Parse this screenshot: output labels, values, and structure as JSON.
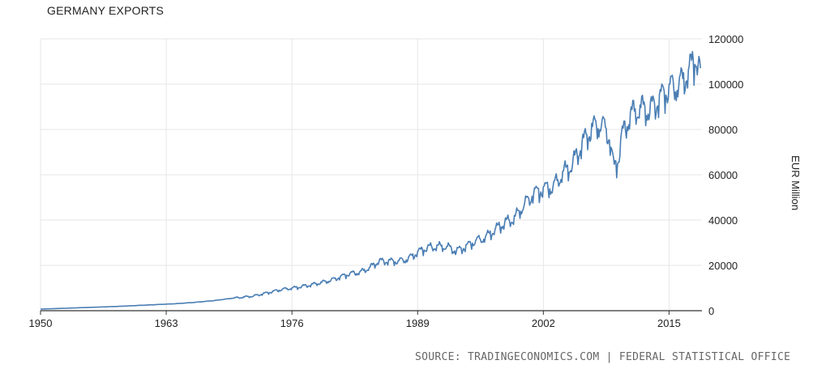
{
  "title": "GERMANY EXPORTS",
  "source": "SOURCE: TRADINGECONOMICS.COM | FEDERAL STATISTICAL OFFICE",
  "colors": {
    "line": "#4a7eb4",
    "grid": "#e6e6e6",
    "axis": "#333333",
    "text": "#222222"
  },
  "chart_data": {
    "type": "line",
    "title": "GERMANY EXPORTS",
    "ylabel": "EUR Million",
    "xlabel": "",
    "xlim": [
      1950,
      2018.4
    ],
    "ylim": [
      0,
      120000
    ],
    "x_ticks": [
      1950,
      1963,
      1976,
      1989,
      2002,
      2015
    ],
    "y_ticks": [
      0,
      20000,
      40000,
      60000,
      80000,
      100000,
      120000
    ],
    "y_axis_position": "right",
    "grid": true,
    "legend": "none",
    "series": [
      {
        "points": [
          [
            1950,
            700
          ],
          [
            1952,
            1000
          ],
          [
            1954,
            1300
          ],
          [
            1956,
            1600
          ],
          [
            1958,
            1900
          ],
          [
            1960,
            2300
          ],
          [
            1962,
            2700
          ],
          [
            1964,
            3100
          ],
          [
            1966,
            3700
          ],
          [
            1968,
            4500
          ],
          [
            1970,
            5600
          ],
          [
            1972,
            6500
          ],
          [
            1974,
            8500
          ],
          [
            1975,
            9500
          ],
          [
            1976,
            10000
          ],
          [
            1978,
            11500
          ],
          [
            1980,
            13500
          ],
          [
            1981,
            15000
          ],
          [
            1982,
            16500
          ],
          [
            1983,
            17000
          ],
          [
            1984,
            19000
          ],
          [
            1985,
            22000
          ],
          [
            1986,
            22000
          ],
          [
            1987,
            22000
          ],
          [
            1988,
            23000
          ],
          [
            1989,
            26000
          ],
          [
            1990,
            28000
          ],
          [
            1991,
            28500
          ],
          [
            1992,
            28500
          ],
          [
            1993,
            26500
          ],
          [
            1994,
            28500
          ],
          [
            1995,
            31000
          ],
          [
            1996,
            32500
          ],
          [
            1997,
            36000
          ],
          [
            1998,
            39000
          ],
          [
            1999,
            41000
          ],
          [
            2000,
            47000
          ],
          [
            2001,
            52000
          ],
          [
            2002,
            54000
          ],
          [
            2003,
            55000
          ],
          [
            2004,
            61000
          ],
          [
            2005,
            65000
          ],
          [
            2006,
            74000
          ],
          [
            2007,
            81000
          ],
          [
            2008,
            83000
          ],
          [
            2008.8,
            78000
          ],
          [
            2009.3,
            63000
          ],
          [
            2009.8,
            68000
          ],
          [
            2010,
            76000
          ],
          [
            2011,
            87000
          ],
          [
            2012,
            90000
          ],
          [
            2013,
            89000
          ],
          [
            2014,
            94000
          ],
          [
            2015,
            99000
          ],
          [
            2016,
            100000
          ],
          [
            2017,
            106000
          ],
          [
            2017.8,
            113000
          ],
          [
            2018.3,
            104000
          ]
        ]
      }
    ]
  }
}
